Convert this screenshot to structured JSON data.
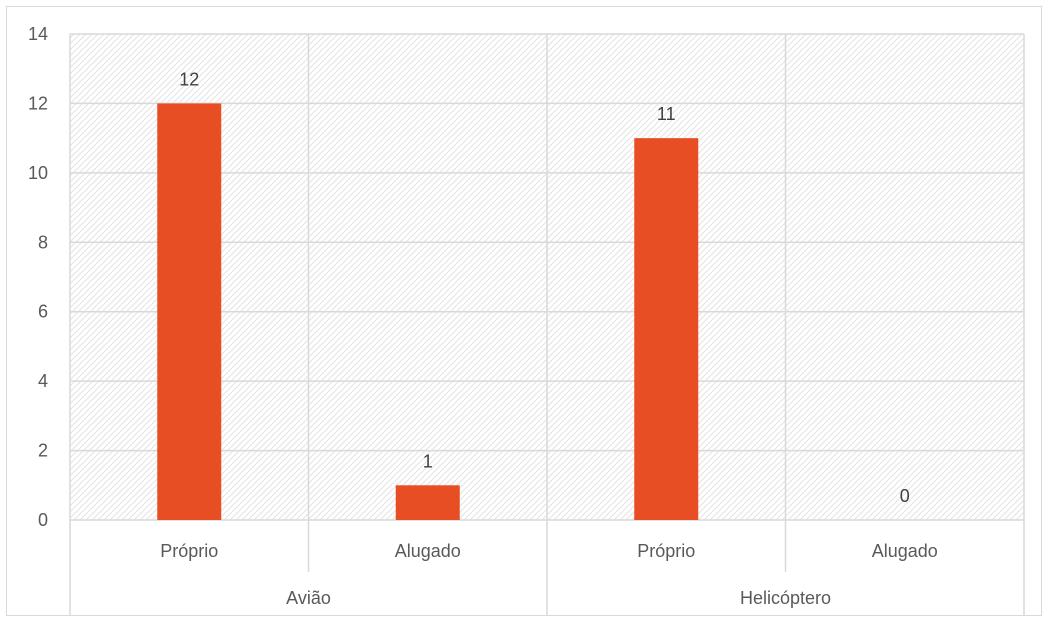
{
  "chart_data": {
    "type": "bar",
    "title": "",
    "xlabel": "",
    "ylabel": "",
    "ylim": [
      0,
      14
    ],
    "y_ticks": [
      0,
      2,
      4,
      6,
      8,
      10,
      12,
      14
    ],
    "grid": true,
    "legend": "none",
    "categories": [
      {
        "group": "Avião",
        "label": "Próprio",
        "value": 12
      },
      {
        "group": "Avião",
        "label": "Alugado",
        "value": 1
      },
      {
        "group": "Helicóptero",
        "label": "Próprio",
        "value": 11
      },
      {
        "group": "Helicóptero",
        "label": "Alugado",
        "value": 0
      }
    ],
    "groups": [
      "Avião",
      "Helicóptero"
    ],
    "colors": {
      "bar": "#e84e23",
      "gridline": "#d9d9d9",
      "hatch": "#e3e3e3",
      "axis_text": "#595959"
    }
  }
}
